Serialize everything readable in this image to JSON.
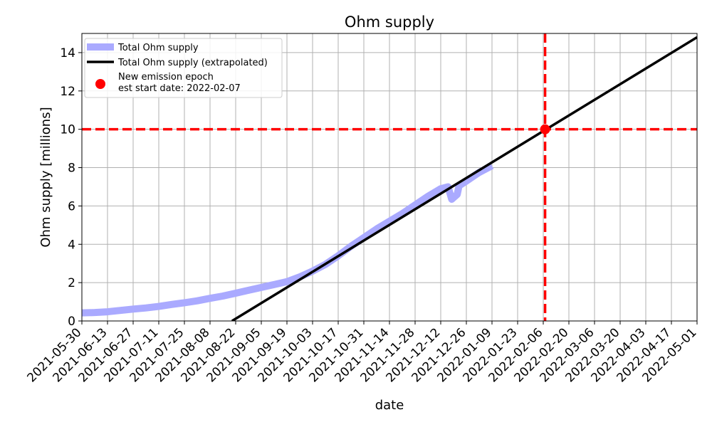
{
  "chart_data": {
    "type": "line",
    "title": "Ohm supply",
    "xlabel": "date",
    "ylabel": "Ohm supply [millions]",
    "xlim": [
      "2021-05-30",
      "2022-05-01"
    ],
    "ylim": [
      0,
      15
    ],
    "grid": true,
    "legend_position": "top-left",
    "x_ticks": [
      "2021-05-30",
      "2021-06-13",
      "2021-06-27",
      "2021-07-11",
      "2021-07-25",
      "2021-08-08",
      "2021-08-22",
      "2021-09-05",
      "2021-09-19",
      "2021-10-03",
      "2021-10-17",
      "2021-10-31",
      "2021-11-14",
      "2021-11-28",
      "2021-12-12",
      "2021-12-26",
      "2022-01-09",
      "2022-01-23",
      "2022-02-06",
      "2022-02-20",
      "2022-03-06",
      "2022-03-20",
      "2022-04-03",
      "2022-04-17",
      "2022-05-01"
    ],
    "y_ticks": [
      0,
      2,
      4,
      6,
      8,
      10,
      12,
      14
    ],
    "series": [
      {
        "name": "Total Ohm supply",
        "color": "#aaaaff",
        "points": [
          {
            "x": "2021-05-30",
            "y": 0.42
          },
          {
            "x": "2021-06-06",
            "y": 0.44
          },
          {
            "x": "2021-06-13",
            "y": 0.48
          },
          {
            "x": "2021-06-20",
            "y": 0.55
          },
          {
            "x": "2021-06-27",
            "y": 0.62
          },
          {
            "x": "2021-07-04",
            "y": 0.68
          },
          {
            "x": "2021-07-11",
            "y": 0.76
          },
          {
            "x": "2021-07-18",
            "y": 0.86
          },
          {
            "x": "2021-07-25",
            "y": 0.95
          },
          {
            "x": "2021-08-01",
            "y": 1.05
          },
          {
            "x": "2021-08-08",
            "y": 1.18
          },
          {
            "x": "2021-08-15",
            "y": 1.3
          },
          {
            "x": "2021-08-22",
            "y": 1.45
          },
          {
            "x": "2021-08-29",
            "y": 1.6
          },
          {
            "x": "2021-09-05",
            "y": 1.75
          },
          {
            "x": "2021-09-12",
            "y": 1.9
          },
          {
            "x": "2021-09-19",
            "y": 2.05
          },
          {
            "x": "2021-09-26",
            "y": 2.3
          },
          {
            "x": "2021-10-03",
            "y": 2.6
          },
          {
            "x": "2021-10-10",
            "y": 2.95
          },
          {
            "x": "2021-10-17",
            "y": 3.4
          },
          {
            "x": "2021-10-24",
            "y": 3.9
          },
          {
            "x": "2021-10-31",
            "y": 4.35
          },
          {
            "x": "2021-11-07",
            "y": 4.8
          },
          {
            "x": "2021-11-14",
            "y": 5.2
          },
          {
            "x": "2021-11-21",
            "y": 5.6
          },
          {
            "x": "2021-11-28",
            "y": 6.05
          },
          {
            "x": "2021-12-05",
            "y": 6.5
          },
          {
            "x": "2021-12-12",
            "y": 6.9
          },
          {
            "x": "2021-12-16",
            "y": 7.0
          },
          {
            "x": "2021-12-18",
            "y": 6.35
          },
          {
            "x": "2021-12-21",
            "y": 6.6
          },
          {
            "x": "2021-12-22",
            "y": 7.05
          },
          {
            "x": "2021-12-26",
            "y": 7.3
          },
          {
            "x": "2022-01-02",
            "y": 7.75
          },
          {
            "x": "2022-01-09",
            "y": 8.1
          }
        ]
      },
      {
        "name": "Total Ohm supply (extrapolated)",
        "color": "#000000",
        "points": [
          {
            "x": "2021-08-20",
            "y": 0
          },
          {
            "x": "2022-05-01",
            "y": 14.8
          }
        ]
      },
      {
        "name": "New emission epoch\nest start date: 2022-02-07",
        "color": "#ff0000",
        "points": [
          {
            "x": "2022-02-07",
            "y": 10
          }
        ]
      }
    ],
    "reference_lines": [
      {
        "orientation": "horizontal",
        "y": 10,
        "color": "#ff0000",
        "style": "dashed"
      },
      {
        "orientation": "vertical",
        "x": "2022-02-07",
        "color": "#ff0000",
        "style": "dashed"
      }
    ]
  }
}
